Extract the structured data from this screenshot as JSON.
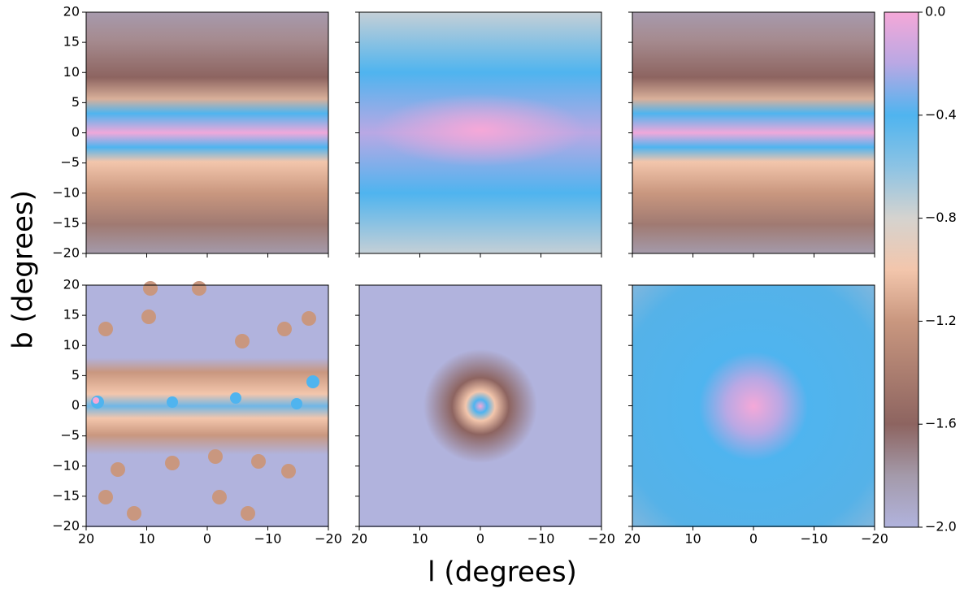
{
  "chart_data": {
    "type": "heatmap",
    "xlabel": "l (degrees)",
    "ylabel": "b (degrees)",
    "xlim": [
      20,
      -20
    ],
    "ylim": [
      -20,
      20
    ],
    "xticks": [
      20,
      10,
      0,
      {
        "value": -10,
        "label": "−10"
      },
      {
        "value": -20,
        "label": "−20"
      }
    ],
    "yticks": [
      {
        "value": -20,
        "label": "−20"
      },
      {
        "value": -15,
        "label": "−15"
      },
      {
        "value": -10,
        "label": "−10"
      },
      {
        "value": -5,
        "label": "−5"
      },
      0,
      5,
      10,
      15,
      20
    ],
    "colorbar": {
      "lim": [
        -2,
        0
      ],
      "ticks": [
        {
          "value": 0,
          "label": "0.0"
        },
        {
          "value": -0.4,
          "label": "−0.4"
        },
        {
          "value": -0.8,
          "label": "−0.8"
        },
        {
          "value": -1.2,
          "label": "−1.2"
        },
        {
          "value": -1.6,
          "label": "−1.6"
        },
        {
          "value": -2,
          "label": "−2.0"
        }
      ],
      "colormap": [
        {
          "value": 0,
          "color": "#f5a8d8"
        },
        {
          "value": -0.2,
          "color": "#b9a8e4"
        },
        {
          "value": -0.4,
          "color": "#4fb4ef"
        },
        {
          "value": -0.6,
          "color": "#8cc3e4"
        },
        {
          "value": -0.8,
          "color": "#d5d3cf"
        },
        {
          "value": -1.0,
          "color": "#f3c6ac"
        },
        {
          "value": -1.2,
          "color": "#c9977f"
        },
        {
          "value": -1.6,
          "color": "#8d6460"
        },
        {
          "value": -1.8,
          "color": "#a49aaa"
        },
        {
          "value": -2,
          "color": "#b1b3dd"
        }
      ]
    }
  }
}
